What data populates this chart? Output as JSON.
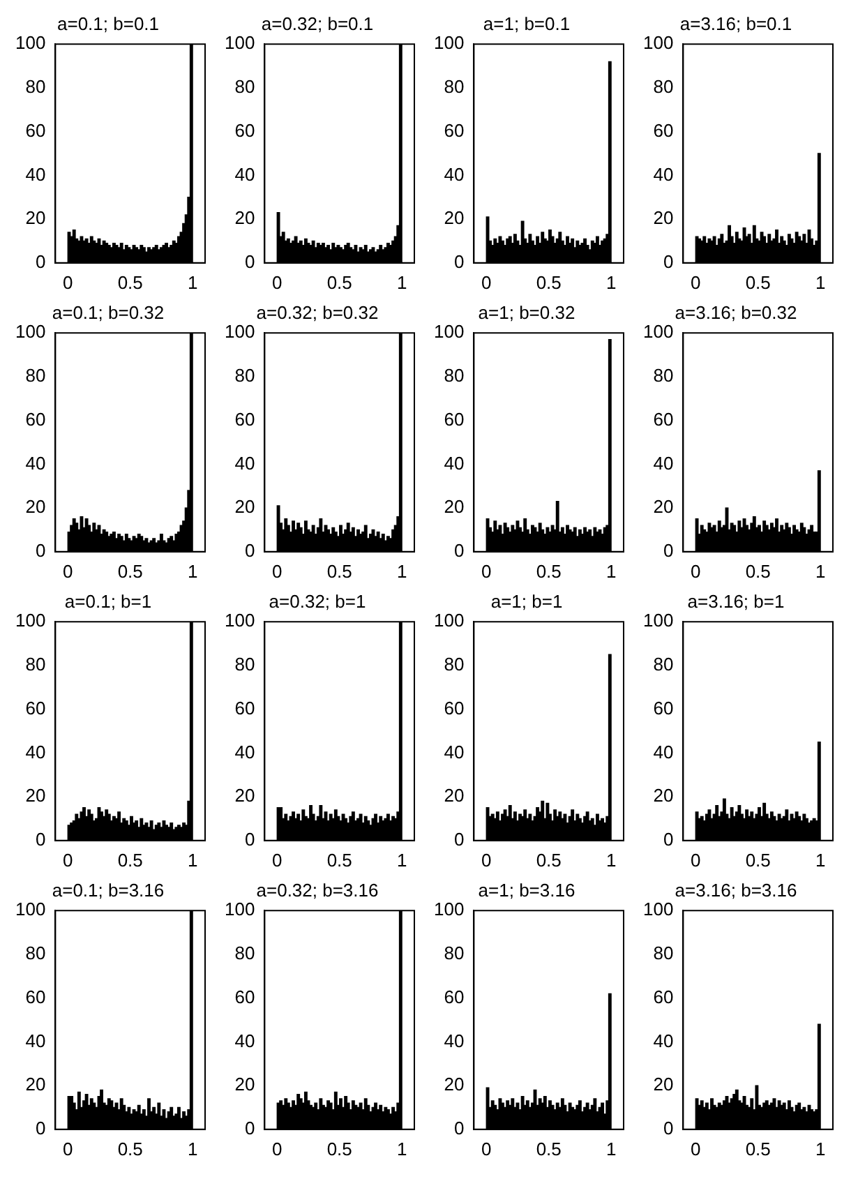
{
  "chart_data": [
    {
      "type": "histogram",
      "title": "a=0.1; b=0.1",
      "color": "#000000",
      "xlim": [
        -0.1,
        1.1
      ],
      "xticks": [
        0,
        0.5,
        1
      ],
      "ylim": [
        0,
        100
      ],
      "yticks": [
        0,
        20,
        40,
        60,
        80,
        100
      ],
      "bins": [
        0,
        0.02,
        0.04,
        0.06,
        0.08,
        0.1,
        0.12,
        0.14,
        0.16,
        0.18,
        0.2,
        0.22,
        0.24,
        0.26,
        0.28,
        0.3,
        0.32,
        0.34,
        0.36,
        0.38,
        0.4,
        0.42,
        0.44,
        0.46,
        0.48,
        0.5,
        0.52,
        0.54,
        0.56,
        0.58,
        0.6,
        0.62,
        0.64,
        0.66,
        0.68,
        0.7,
        0.72,
        0.74,
        0.76,
        0.78,
        0.8,
        0.82,
        0.84,
        0.86,
        0.88,
        0.9,
        0.92,
        0.94,
        0.96,
        0.98,
        1
      ],
      "values": [
        14,
        12,
        15,
        11,
        10,
        12,
        10,
        11,
        9,
        12,
        10,
        9,
        11,
        8,
        10,
        9,
        8,
        7,
        9,
        8,
        7,
        9,
        6,
        8,
        7,
        6,
        8,
        7,
        6,
        8,
        7,
        5,
        7,
        6,
        7,
        8,
        6,
        7,
        8,
        9,
        7,
        8,
        10,
        9,
        12,
        14,
        18,
        22,
        30,
        100
      ]
    },
    {
      "type": "histogram",
      "title": "a=0.32; b=0.1",
      "color": "#000000",
      "xlim": [
        -0.1,
        1.1
      ],
      "xticks": [
        0,
        0.5,
        1
      ],
      "ylim": [
        0,
        100
      ],
      "yticks": [
        0,
        20,
        40,
        60,
        80,
        100
      ],
      "bins": [
        0,
        0.02,
        0.04,
        0.06,
        0.08,
        0.1,
        0.12,
        0.14,
        0.16,
        0.18,
        0.2,
        0.22,
        0.24,
        0.26,
        0.28,
        0.3,
        0.32,
        0.34,
        0.36,
        0.38,
        0.4,
        0.42,
        0.44,
        0.46,
        0.48,
        0.5,
        0.52,
        0.54,
        0.56,
        0.58,
        0.6,
        0.62,
        0.64,
        0.66,
        0.68,
        0.7,
        0.72,
        0.74,
        0.76,
        0.78,
        0.8,
        0.82,
        0.84,
        0.86,
        0.88,
        0.9,
        0.92,
        0.94,
        0.96,
        0.98,
        1
      ],
      "values": [
        23,
        12,
        14,
        10,
        11,
        9,
        10,
        12,
        9,
        10,
        8,
        11,
        9,
        8,
        10,
        7,
        9,
        8,
        9,
        7,
        8,
        6,
        9,
        7,
        8,
        7,
        6,
        8,
        9,
        7,
        6,
        8,
        5,
        7,
        6,
        8,
        5,
        6,
        7,
        5,
        6,
        8,
        6,
        7,
        9,
        8,
        10,
        12,
        17,
        100
      ]
    },
    {
      "type": "histogram",
      "title": "a=1; b=0.1",
      "color": "#000000",
      "xlim": [
        -0.1,
        1.1
      ],
      "xticks": [
        0,
        0.5,
        1
      ],
      "ylim": [
        0,
        100
      ],
      "yticks": [
        0,
        20,
        40,
        60,
        80,
        100
      ],
      "bins": [
        0,
        0.02,
        0.04,
        0.06,
        0.08,
        0.1,
        0.12,
        0.14,
        0.16,
        0.18,
        0.2,
        0.22,
        0.24,
        0.26,
        0.28,
        0.3,
        0.32,
        0.34,
        0.36,
        0.38,
        0.4,
        0.42,
        0.44,
        0.46,
        0.48,
        0.5,
        0.52,
        0.54,
        0.56,
        0.58,
        0.6,
        0.62,
        0.64,
        0.66,
        0.68,
        0.7,
        0.72,
        0.74,
        0.76,
        0.78,
        0.8,
        0.82,
        0.84,
        0.86,
        0.88,
        0.9,
        0.92,
        0.94,
        0.96,
        0.98,
        1
      ],
      "values": [
        21,
        10,
        8,
        11,
        9,
        12,
        10,
        8,
        11,
        12,
        9,
        13,
        10,
        8,
        19,
        11,
        9,
        13,
        10,
        8,
        12,
        9,
        14,
        11,
        10,
        15,
        12,
        9,
        11,
        14,
        10,
        8,
        12,
        9,
        11,
        7,
        10,
        8,
        9,
        11,
        8,
        6,
        10,
        9,
        12,
        8,
        10,
        11,
        13,
        92
      ]
    },
    {
      "type": "histogram",
      "title": "a=3.16; b=0.1",
      "color": "#000000",
      "xlim": [
        -0.1,
        1.1
      ],
      "xticks": [
        0,
        0.5,
        1
      ],
      "ylim": [
        0,
        100
      ],
      "yticks": [
        0,
        20,
        40,
        60,
        80,
        100
      ],
      "bins": [
        0,
        0.02,
        0.04,
        0.06,
        0.08,
        0.1,
        0.12,
        0.14,
        0.16,
        0.18,
        0.2,
        0.22,
        0.24,
        0.26,
        0.28,
        0.3,
        0.32,
        0.34,
        0.36,
        0.38,
        0.4,
        0.42,
        0.44,
        0.46,
        0.48,
        0.5,
        0.52,
        0.54,
        0.56,
        0.58,
        0.6,
        0.62,
        0.64,
        0.66,
        0.68,
        0.7,
        0.72,
        0.74,
        0.76,
        0.78,
        0.8,
        0.82,
        0.84,
        0.86,
        0.88,
        0.9,
        0.92,
        0.94,
        0.96,
        0.98,
        1
      ],
      "values": [
        12,
        11,
        10,
        12,
        9,
        11,
        10,
        12,
        8,
        11,
        13,
        9,
        10,
        17,
        12,
        9,
        14,
        11,
        10,
        16,
        12,
        13,
        9,
        17,
        11,
        10,
        14,
        12,
        9,
        13,
        10,
        11,
        15,
        9,
        12,
        10,
        8,
        13,
        11,
        9,
        14,
        12,
        10,
        13,
        9,
        15,
        11,
        8,
        10,
        50
      ]
    },
    {
      "type": "histogram",
      "title": "a=0.1; b=0.32",
      "color": "#000000",
      "xlim": [
        -0.1,
        1.1
      ],
      "xticks": [
        0,
        0.5,
        1
      ],
      "ylim": [
        0,
        100
      ],
      "yticks": [
        0,
        20,
        40,
        60,
        80,
        100
      ],
      "bins": [
        0,
        0.02,
        0.04,
        0.06,
        0.08,
        0.1,
        0.12,
        0.14,
        0.16,
        0.18,
        0.2,
        0.22,
        0.24,
        0.26,
        0.28,
        0.3,
        0.32,
        0.34,
        0.36,
        0.38,
        0.4,
        0.42,
        0.44,
        0.46,
        0.48,
        0.5,
        0.52,
        0.54,
        0.56,
        0.58,
        0.6,
        0.62,
        0.64,
        0.66,
        0.68,
        0.7,
        0.72,
        0.74,
        0.76,
        0.78,
        0.8,
        0.82,
        0.84,
        0.86,
        0.88,
        0.9,
        0.92,
        0.94,
        0.96,
        0.98,
        1
      ],
      "values": [
        9,
        12,
        15,
        13,
        10,
        16,
        11,
        15,
        12,
        9,
        13,
        10,
        12,
        8,
        10,
        9,
        7,
        8,
        9,
        6,
        8,
        7,
        5,
        8,
        6,
        5,
        7,
        6,
        8,
        7,
        5,
        6,
        4,
        5,
        6,
        4,
        5,
        8,
        5,
        4,
        6,
        7,
        5,
        8,
        9,
        12,
        14,
        20,
        28,
        100
      ]
    },
    {
      "type": "histogram",
      "title": "a=0.32; b=0.32",
      "color": "#000000",
      "xlim": [
        -0.1,
        1.1
      ],
      "xticks": [
        0,
        0.5,
        1
      ],
      "ylim": [
        0,
        100
      ],
      "yticks": [
        0,
        20,
        40,
        60,
        80,
        100
      ],
      "bins": [
        0,
        0.02,
        0.04,
        0.06,
        0.08,
        0.1,
        0.12,
        0.14,
        0.16,
        0.18,
        0.2,
        0.22,
        0.24,
        0.26,
        0.28,
        0.3,
        0.32,
        0.34,
        0.36,
        0.38,
        0.4,
        0.42,
        0.44,
        0.46,
        0.48,
        0.5,
        0.52,
        0.54,
        0.56,
        0.58,
        0.6,
        0.62,
        0.64,
        0.66,
        0.68,
        0.7,
        0.72,
        0.74,
        0.76,
        0.78,
        0.8,
        0.82,
        0.84,
        0.86,
        0.88,
        0.9,
        0.92,
        0.94,
        0.96,
        0.98,
        1
      ],
      "values": [
        21,
        13,
        10,
        15,
        12,
        9,
        14,
        10,
        13,
        11,
        8,
        14,
        10,
        9,
        12,
        8,
        11,
        15,
        9,
        12,
        10,
        8,
        11,
        9,
        7,
        12,
        8,
        10,
        13,
        9,
        11,
        7,
        10,
        8,
        9,
        12,
        6,
        8,
        10,
        7,
        9,
        6,
        8,
        5,
        7,
        6,
        10,
        12,
        16,
        100
      ]
    },
    {
      "type": "histogram",
      "title": "a=1; b=0.32",
      "color": "#000000",
      "xlim": [
        -0.1,
        1.1
      ],
      "xticks": [
        0,
        0.5,
        1
      ],
      "ylim": [
        0,
        100
      ],
      "yticks": [
        0,
        20,
        40,
        60,
        80,
        100
      ],
      "bins": [
        0,
        0.02,
        0.04,
        0.06,
        0.08,
        0.1,
        0.12,
        0.14,
        0.16,
        0.18,
        0.2,
        0.22,
        0.24,
        0.26,
        0.28,
        0.3,
        0.32,
        0.34,
        0.36,
        0.38,
        0.4,
        0.42,
        0.44,
        0.46,
        0.48,
        0.5,
        0.52,
        0.54,
        0.56,
        0.58,
        0.6,
        0.62,
        0.64,
        0.66,
        0.68,
        0.7,
        0.72,
        0.74,
        0.76,
        0.78,
        0.8,
        0.82,
        0.84,
        0.86,
        0.88,
        0.9,
        0.92,
        0.94,
        0.96,
        0.98,
        1
      ],
      "values": [
        15,
        11,
        9,
        14,
        10,
        12,
        8,
        13,
        11,
        9,
        12,
        10,
        14,
        11,
        9,
        15,
        10,
        8,
        12,
        11,
        9,
        13,
        10,
        8,
        11,
        9,
        12,
        10,
        23,
        9,
        11,
        8,
        12,
        10,
        9,
        11,
        7,
        10,
        8,
        11,
        9,
        10,
        7,
        11,
        9,
        10,
        8,
        11,
        12,
        97
      ]
    },
    {
      "type": "histogram",
      "title": "a=3.16; b=0.32",
      "color": "#000000",
      "xlim": [
        -0.1,
        1.1
      ],
      "xticks": [
        0,
        0.5,
        1
      ],
      "ylim": [
        0,
        100
      ],
      "yticks": [
        0,
        20,
        40,
        60,
        80,
        100
      ],
      "bins": [
        0,
        0.02,
        0.04,
        0.06,
        0.08,
        0.1,
        0.12,
        0.14,
        0.16,
        0.18,
        0.2,
        0.22,
        0.24,
        0.26,
        0.28,
        0.3,
        0.32,
        0.34,
        0.36,
        0.38,
        0.4,
        0.42,
        0.44,
        0.46,
        0.48,
        0.5,
        0.52,
        0.54,
        0.56,
        0.58,
        0.6,
        0.62,
        0.64,
        0.66,
        0.68,
        0.7,
        0.72,
        0.74,
        0.76,
        0.78,
        0.8,
        0.82,
        0.84,
        0.86,
        0.88,
        0.9,
        0.92,
        0.94,
        0.96,
        0.98,
        1
      ],
      "values": [
        15,
        8,
        12,
        10,
        9,
        13,
        11,
        12,
        9,
        14,
        11,
        12,
        20,
        10,
        13,
        12,
        9,
        14,
        11,
        15,
        12,
        10,
        13,
        16,
        11,
        12,
        9,
        14,
        12,
        10,
        13,
        11,
        15,
        9,
        12,
        10,
        13,
        11,
        8,
        12,
        10,
        9,
        13,
        11,
        8,
        10,
        12,
        9,
        9,
        37
      ]
    },
    {
      "type": "histogram",
      "title": "a=0.1; b=1",
      "color": "#000000",
      "xlim": [
        -0.1,
        1.1
      ],
      "xticks": [
        0,
        0.5,
        1
      ],
      "ylim": [
        0,
        100
      ],
      "yticks": [
        0,
        20,
        40,
        60,
        80,
        100
      ],
      "bins": [
        0,
        0.02,
        0.04,
        0.06,
        0.08,
        0.1,
        0.12,
        0.14,
        0.16,
        0.18,
        0.2,
        0.22,
        0.24,
        0.26,
        0.28,
        0.3,
        0.32,
        0.34,
        0.36,
        0.38,
        0.4,
        0.42,
        0.44,
        0.46,
        0.48,
        0.5,
        0.52,
        0.54,
        0.56,
        0.58,
        0.6,
        0.62,
        0.64,
        0.66,
        0.68,
        0.7,
        0.72,
        0.74,
        0.76,
        0.78,
        0.8,
        0.82,
        0.84,
        0.86,
        0.88,
        0.9,
        0.92,
        0.94,
        0.96,
        0.98,
        1
      ],
      "values": [
        7,
        8,
        9,
        12,
        10,
        13,
        15,
        11,
        14,
        12,
        9,
        10,
        15,
        13,
        11,
        14,
        12,
        9,
        11,
        10,
        13,
        8,
        10,
        9,
        7,
        11,
        8,
        9,
        6,
        10,
        7,
        8,
        6,
        9,
        5,
        7,
        8,
        6,
        9,
        7,
        6,
        8,
        5,
        6,
        7,
        6,
        8,
        7,
        18,
        100
      ]
    },
    {
      "type": "histogram",
      "title": "a=0.32; b=1",
      "color": "#000000",
      "xlim": [
        -0.1,
        1.1
      ],
      "xticks": [
        0,
        0.5,
        1
      ],
      "ylim": [
        0,
        100
      ],
      "yticks": [
        0,
        20,
        40,
        60,
        80,
        100
      ],
      "bins": [
        0,
        0.02,
        0.04,
        0.06,
        0.08,
        0.1,
        0.12,
        0.14,
        0.16,
        0.18,
        0.2,
        0.22,
        0.24,
        0.26,
        0.28,
        0.3,
        0.32,
        0.34,
        0.36,
        0.38,
        0.4,
        0.42,
        0.44,
        0.46,
        0.48,
        0.5,
        0.52,
        0.54,
        0.56,
        0.58,
        0.6,
        0.62,
        0.64,
        0.66,
        0.68,
        0.7,
        0.72,
        0.74,
        0.76,
        0.78,
        0.8,
        0.82,
        0.84,
        0.86,
        0.88,
        0.9,
        0.92,
        0.94,
        0.96,
        0.98,
        1
      ],
      "values": [
        15,
        15,
        10,
        12,
        9,
        11,
        13,
        10,
        12,
        9,
        14,
        11,
        10,
        16,
        12,
        9,
        11,
        16,
        10,
        13,
        9,
        12,
        10,
        14,
        11,
        9,
        12,
        10,
        8,
        11,
        13,
        9,
        10,
        12,
        8,
        11,
        9,
        7,
        10,
        12,
        8,
        11,
        9,
        10,
        12,
        9,
        11,
        10,
        13,
        100
      ]
    },
    {
      "type": "histogram",
      "title": "a=1; b=1",
      "color": "#000000",
      "xlim": [
        -0.1,
        1.1
      ],
      "xticks": [
        0,
        0.5,
        1
      ],
      "ylim": [
        0,
        100
      ],
      "yticks": [
        0,
        20,
        40,
        60,
        80,
        100
      ],
      "bins": [
        0,
        0.02,
        0.04,
        0.06,
        0.08,
        0.1,
        0.12,
        0.14,
        0.16,
        0.18,
        0.2,
        0.22,
        0.24,
        0.26,
        0.28,
        0.3,
        0.32,
        0.34,
        0.36,
        0.38,
        0.4,
        0.42,
        0.44,
        0.46,
        0.48,
        0.5,
        0.52,
        0.54,
        0.56,
        0.58,
        0.6,
        0.62,
        0.64,
        0.66,
        0.68,
        0.7,
        0.72,
        0.74,
        0.76,
        0.78,
        0.8,
        0.82,
        0.84,
        0.86,
        0.88,
        0.9,
        0.92,
        0.94,
        0.96,
        0.98,
        1
      ],
      "values": [
        15,
        11,
        12,
        10,
        13,
        9,
        12,
        14,
        11,
        16,
        10,
        13,
        9,
        12,
        11,
        14,
        10,
        12,
        9,
        11,
        15,
        13,
        18,
        10,
        17,
        12,
        9,
        14,
        11,
        13,
        10,
        12,
        8,
        11,
        14,
        9,
        12,
        10,
        8,
        11,
        13,
        9,
        10,
        7,
        12,
        9,
        10,
        8,
        11,
        85
      ]
    },
    {
      "type": "histogram",
      "title": "a=3.16; b=1",
      "color": "#000000",
      "xlim": [
        -0.1,
        1.1
      ],
      "xticks": [
        0,
        0.5,
        1
      ],
      "ylim": [
        0,
        100
      ],
      "yticks": [
        0,
        20,
        40,
        60,
        80,
        100
      ],
      "bins": [
        0,
        0.02,
        0.04,
        0.06,
        0.08,
        0.1,
        0.12,
        0.14,
        0.16,
        0.18,
        0.2,
        0.22,
        0.24,
        0.26,
        0.28,
        0.3,
        0.32,
        0.34,
        0.36,
        0.38,
        0.4,
        0.42,
        0.44,
        0.46,
        0.48,
        0.5,
        0.52,
        0.54,
        0.56,
        0.58,
        0.6,
        0.62,
        0.64,
        0.66,
        0.68,
        0.7,
        0.72,
        0.74,
        0.76,
        0.78,
        0.8,
        0.82,
        0.84,
        0.86,
        0.88,
        0.9,
        0.92,
        0.94,
        0.96,
        0.98,
        1
      ],
      "values": [
        13,
        10,
        11,
        9,
        12,
        14,
        10,
        12,
        16,
        11,
        13,
        19,
        12,
        10,
        15,
        11,
        13,
        16,
        12,
        10,
        14,
        11,
        13,
        10,
        12,
        15,
        11,
        17,
        12,
        10,
        13,
        11,
        9,
        12,
        10,
        11,
        14,
        9,
        12,
        10,
        13,
        11,
        9,
        12,
        10,
        8,
        9,
        10,
        9,
        45
      ]
    },
    {
      "type": "histogram",
      "title": "a=0.1; b=3.16",
      "color": "#000000",
      "xlim": [
        -0.1,
        1.1
      ],
      "xticks": [
        0,
        0.5,
        1
      ],
      "ylim": [
        0,
        100
      ],
      "yticks": [
        0,
        20,
        40,
        60,
        80,
        100
      ],
      "bins": [
        0,
        0.02,
        0.04,
        0.06,
        0.08,
        0.1,
        0.12,
        0.14,
        0.16,
        0.18,
        0.2,
        0.22,
        0.24,
        0.26,
        0.28,
        0.3,
        0.32,
        0.34,
        0.36,
        0.38,
        0.4,
        0.42,
        0.44,
        0.46,
        0.48,
        0.5,
        0.52,
        0.54,
        0.56,
        0.58,
        0.6,
        0.62,
        0.64,
        0.66,
        0.68,
        0.7,
        0.72,
        0.74,
        0.76,
        0.78,
        0.8,
        0.82,
        0.84,
        0.86,
        0.88,
        0.9,
        0.92,
        0.94,
        0.96,
        0.98,
        1
      ],
      "values": [
        15,
        15,
        12,
        9,
        17,
        10,
        13,
        16,
        11,
        14,
        12,
        10,
        15,
        18,
        12,
        11,
        14,
        13,
        10,
        12,
        9,
        14,
        11,
        8,
        10,
        7,
        9,
        8,
        11,
        7,
        9,
        6,
        14,
        8,
        10,
        7,
        12,
        6,
        9,
        5,
        8,
        10,
        6,
        7,
        10,
        5,
        8,
        6,
        9,
        100
      ]
    },
    {
      "type": "histogram",
      "title": "a=0.32; b=3.16",
      "color": "#000000",
      "xlim": [
        -0.1,
        1.1
      ],
      "xticks": [
        0,
        0.5,
        1
      ],
      "ylim": [
        0,
        100
      ],
      "yticks": [
        0,
        20,
        40,
        60,
        80,
        100
      ],
      "bins": [
        0,
        0.02,
        0.04,
        0.06,
        0.08,
        0.1,
        0.12,
        0.14,
        0.16,
        0.18,
        0.2,
        0.22,
        0.24,
        0.26,
        0.28,
        0.3,
        0.32,
        0.34,
        0.36,
        0.38,
        0.4,
        0.42,
        0.44,
        0.46,
        0.48,
        0.5,
        0.52,
        0.54,
        0.56,
        0.58,
        0.6,
        0.62,
        0.64,
        0.66,
        0.68,
        0.7,
        0.72,
        0.74,
        0.76,
        0.78,
        0.8,
        0.82,
        0.84,
        0.86,
        0.88,
        0.9,
        0.92,
        0.94,
        0.96,
        0.98,
        1
      ],
      "values": [
        12,
        13,
        11,
        14,
        12,
        10,
        13,
        11,
        16,
        14,
        12,
        17,
        13,
        11,
        10,
        12,
        9,
        14,
        11,
        10,
        13,
        12,
        9,
        17,
        11,
        14,
        10,
        15,
        12,
        9,
        13,
        11,
        10,
        12,
        9,
        14,
        11,
        8,
        10,
        12,
        9,
        11,
        8,
        10,
        9,
        7,
        10,
        8,
        12,
        100
      ]
    },
    {
      "type": "histogram",
      "title": "a=1; b=3.16",
      "color": "#000000",
      "xlim": [
        -0.1,
        1.1
      ],
      "xticks": [
        0,
        0.5,
        1
      ],
      "ylim": [
        0,
        100
      ],
      "yticks": [
        0,
        20,
        40,
        60,
        80,
        100
      ],
      "bins": [
        0,
        0.02,
        0.04,
        0.06,
        0.08,
        0.1,
        0.12,
        0.14,
        0.16,
        0.18,
        0.2,
        0.22,
        0.24,
        0.26,
        0.28,
        0.3,
        0.32,
        0.34,
        0.36,
        0.38,
        0.4,
        0.42,
        0.44,
        0.46,
        0.48,
        0.5,
        0.52,
        0.54,
        0.56,
        0.58,
        0.6,
        0.62,
        0.64,
        0.66,
        0.68,
        0.7,
        0.72,
        0.74,
        0.76,
        0.78,
        0.8,
        0.82,
        0.84,
        0.86,
        0.88,
        0.9,
        0.92,
        0.94,
        0.96,
        0.98,
        1
      ],
      "values": [
        19,
        10,
        13,
        11,
        9,
        14,
        12,
        10,
        13,
        11,
        14,
        10,
        12,
        9,
        15,
        11,
        13,
        10,
        12,
        18,
        11,
        14,
        12,
        15,
        10,
        13,
        11,
        9,
        12,
        10,
        14,
        11,
        8,
        12,
        10,
        9,
        11,
        13,
        8,
        10,
        12,
        9,
        11,
        14,
        8,
        10,
        12,
        7,
        13,
        62
      ]
    },
    {
      "type": "histogram",
      "title": "a=3.16; b=3.16",
      "color": "#000000",
      "xlim": [
        -0.1,
        1.1
      ],
      "xticks": [
        0,
        0.5,
        1
      ],
      "ylim": [
        0,
        100
      ],
      "yticks": [
        0,
        20,
        40,
        60,
        80,
        100
      ],
      "bins": [
        0,
        0.02,
        0.04,
        0.06,
        0.08,
        0.1,
        0.12,
        0.14,
        0.16,
        0.18,
        0.2,
        0.22,
        0.24,
        0.26,
        0.28,
        0.3,
        0.32,
        0.34,
        0.36,
        0.38,
        0.4,
        0.42,
        0.44,
        0.46,
        0.48,
        0.5,
        0.52,
        0.54,
        0.56,
        0.58,
        0.6,
        0.62,
        0.64,
        0.66,
        0.68,
        0.7,
        0.72,
        0.74,
        0.76,
        0.78,
        0.8,
        0.82,
        0.84,
        0.86,
        0.88,
        0.9,
        0.92,
        0.94,
        0.96,
        0.98,
        1
      ],
      "values": [
        14,
        11,
        13,
        10,
        12,
        9,
        14,
        11,
        10,
        12,
        11,
        13,
        15,
        12,
        14,
        16,
        18,
        13,
        12,
        15,
        11,
        10,
        14,
        9,
        20,
        11,
        10,
        12,
        13,
        11,
        12,
        14,
        10,
        13,
        11,
        12,
        9,
        13,
        10,
        8,
        11,
        12,
        9,
        10,
        8,
        11,
        9,
        8,
        9,
        48
      ]
    }
  ]
}
